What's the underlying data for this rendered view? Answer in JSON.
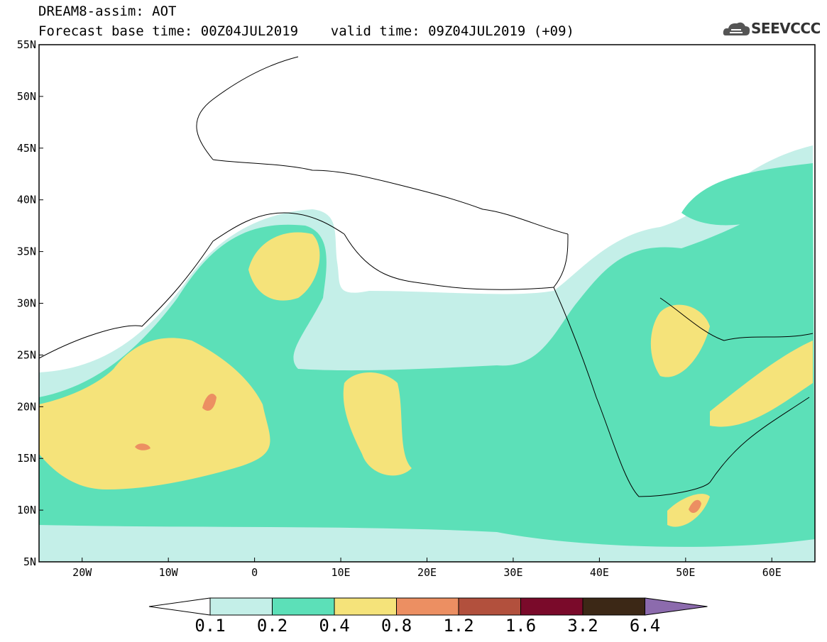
{
  "header": {
    "title_line1": "DREAM8-assim: AOT",
    "title_line2": "Forecast base time: 00Z04JUL2019    valid time: 09Z04JUL2019 (+09)"
  },
  "logo": {
    "text": "SEEVCCC",
    "icon": "cloud-icon"
  },
  "map": {
    "lon_range": [
      -25,
      65
    ],
    "lat_range": [
      5,
      55
    ],
    "lat_ticks": [
      "55N",
      "50N",
      "45N",
      "40N",
      "35N",
      "30N",
      "25N",
      "20N",
      "15N",
      "10N",
      "5N"
    ],
    "lon_ticks": [
      "20W",
      "10W",
      "0",
      "10E",
      "20E",
      "30E",
      "40E",
      "50E",
      "60E"
    ]
  },
  "colorbar": {
    "levels": [
      "0.1",
      "0.2",
      "0.4",
      "0.8",
      "1.2",
      "1.6",
      "3.2",
      "6.4"
    ],
    "colors": [
      "#c4efe8",
      "#5ce0b8",
      "#f5e37a",
      "#ec8f62",
      "#b2503d",
      "#7a0a2a",
      "#3c2816",
      "#8c6bad"
    ]
  }
}
